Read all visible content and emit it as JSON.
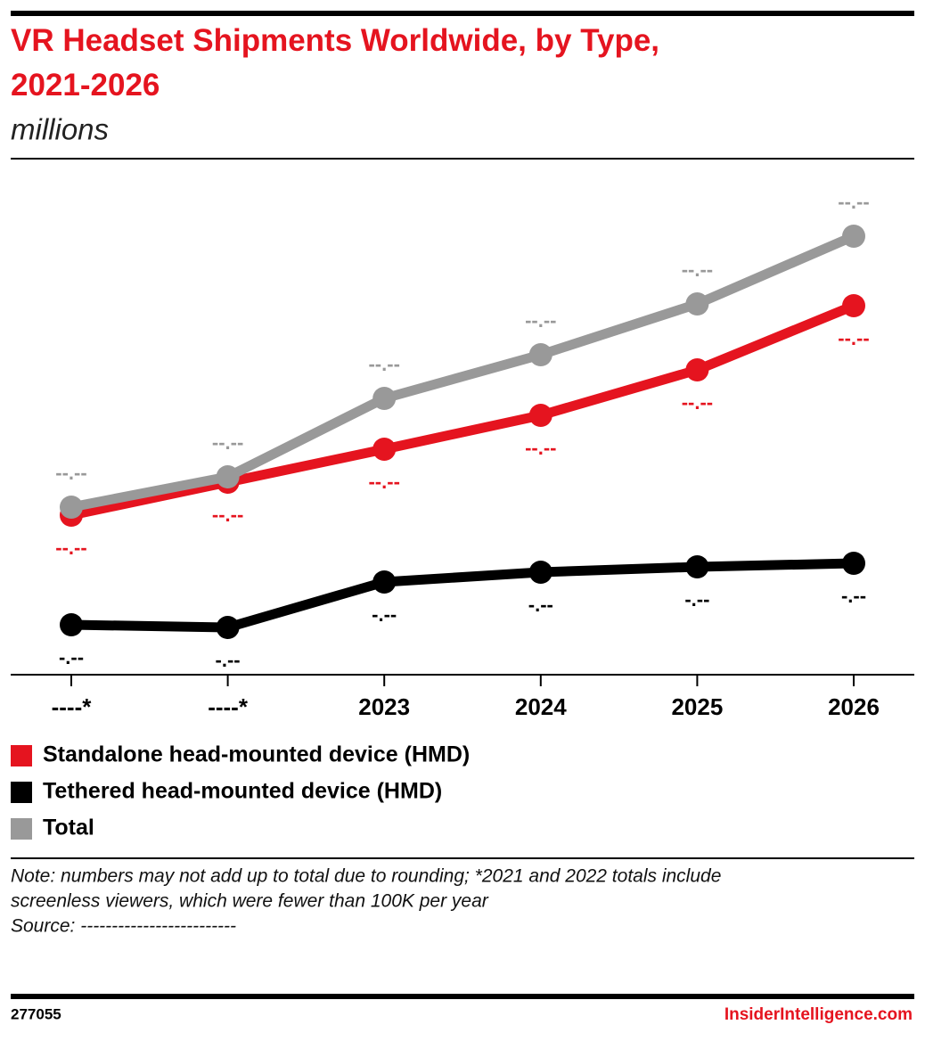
{
  "chart_data": {
    "type": "line",
    "title": "VR Headset Shipments Worldwide, by Type, 2021-2026",
    "subtitle": "millions",
    "categories": [
      "----*",
      "----*",
      "2023",
      "2024",
      "2025",
      "2026"
    ],
    "series": [
      {
        "name": "Standalone head-mounted device (HMD)",
        "color": "#e5141f",
        "values": [
          13.2,
          16.9,
          20.6,
          24.4,
          29.5,
          36.7
        ],
        "value_labels": [
          "--.--",
          "--.--",
          "--.--",
          "--.--",
          "--.--",
          "--.--"
        ]
      },
      {
        "name": "Tethered head-mounted device (HMD)",
        "color": "#000000",
        "values": [
          0.9,
          0.6,
          5.7,
          6.8,
          7.4,
          7.8
        ],
        "value_labels": [
          "-.--",
          "-.--",
          "-.--",
          "-.--",
          "-.--",
          "-.--"
        ]
      },
      {
        "name": "Total",
        "color": "#999999",
        "values": [
          14.1,
          17.5,
          26.3,
          31.2,
          36.9,
          44.5
        ],
        "value_labels": [
          "--.--",
          "--.--",
          "--.--",
          "--.--",
          "--.--",
          "--.--"
        ]
      }
    ],
    "ylim": [
      -4.7,
      52
    ],
    "grid": false,
    "notes": [
      "Note: numbers may not add up to total due to rounding; *2021 and 2022 totals include",
      "screenless viewers, which were fewer than 100K per year",
      "Source: -------------------------"
    ],
    "chart_id": "277055",
    "brand": "InsiderIntelligence.com"
  }
}
